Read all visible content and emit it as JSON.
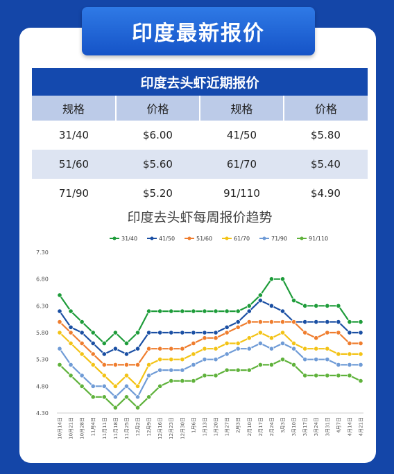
{
  "banner": {
    "title": "印度最新报价"
  },
  "price_table": {
    "title": "印度去头虾近期报价",
    "headers": [
      "规格",
      "价格",
      "规格",
      "价格"
    ],
    "rows": [
      [
        "31/40",
        "$6.00",
        "41/50",
        "$5.80"
      ],
      [
        "51/60",
        "$5.60",
        "61/70",
        "$5.40"
      ],
      [
        "71/90",
        "$5.20",
        "91/110",
        "$4.90"
      ]
    ]
  },
  "chart_data": {
    "type": "line",
    "title": "印度去头虾每周报价趋势",
    "legend_position": "top",
    "grid": false,
    "ylim": [
      4.3,
      7.3
    ],
    "yticks": [
      "7.30",
      "6.80",
      "6.30",
      "5.80",
      "5.30",
      "4.80",
      "4.30"
    ],
    "x": [
      "10月14日",
      "10月21日",
      "10月28日",
      "11月4日",
      "11月11日",
      "11月18日",
      "11月25日",
      "12月2日",
      "12月9日",
      "12月16日",
      "12月23日",
      "12月30日",
      "1月6日",
      "1月13日",
      "1月20日",
      "1月27日",
      "2月3日",
      "2月10日",
      "2月17日",
      "2月24日",
      "3月3日",
      "3月10日",
      "3月17日",
      "3月24日",
      "3月31日",
      "4月7日",
      "4月14日",
      "4月21日"
    ],
    "series": [
      {
        "name": "31/40",
        "color": "#1e9c3a",
        "values": [
          6.5,
          6.2,
          6.0,
          5.8,
          5.6,
          5.8,
          5.6,
          5.8,
          6.2,
          6.2,
          6.2,
          6.2,
          6.2,
          6.2,
          6.2,
          6.2,
          6.2,
          6.3,
          6.5,
          6.8,
          6.8,
          6.4,
          6.3,
          6.3,
          6.3,
          6.3,
          6.0,
          6.0
        ]
      },
      {
        "name": "41/50",
        "color": "#1a4fa3",
        "values": [
          6.2,
          5.9,
          5.8,
          5.6,
          5.4,
          5.5,
          5.4,
          5.5,
          5.8,
          5.8,
          5.8,
          5.8,
          5.8,
          5.8,
          5.8,
          5.9,
          6.0,
          6.2,
          6.4,
          6.3,
          6.2,
          6.0,
          6.0,
          6.0,
          6.0,
          6.0,
          5.8,
          5.8
        ]
      },
      {
        "name": "51/60",
        "color": "#ef7d2e",
        "values": [
          6.0,
          5.8,
          5.6,
          5.4,
          5.2,
          5.2,
          5.2,
          5.2,
          5.5,
          5.5,
          5.5,
          5.5,
          5.6,
          5.7,
          5.7,
          5.8,
          5.9,
          6.0,
          6.0,
          6.0,
          6.0,
          6.0,
          5.8,
          5.7,
          5.8,
          5.8,
          5.6,
          5.6
        ]
      },
      {
        "name": "61/70",
        "color": "#f3c316",
        "values": [
          5.8,
          5.6,
          5.4,
          5.2,
          5.0,
          4.8,
          5.0,
          4.8,
          5.2,
          5.3,
          5.3,
          5.3,
          5.4,
          5.5,
          5.5,
          5.6,
          5.6,
          5.7,
          5.8,
          5.7,
          5.8,
          5.6,
          5.5,
          5.5,
          5.5,
          5.4,
          5.4,
          5.4
        ]
      },
      {
        "name": "71/90",
        "color": "#6f9bd6",
        "values": [
          5.5,
          5.2,
          5.0,
          4.8,
          4.8,
          4.6,
          4.8,
          4.6,
          5.0,
          5.1,
          5.1,
          5.1,
          5.2,
          5.3,
          5.3,
          5.4,
          5.5,
          5.5,
          5.6,
          5.5,
          5.6,
          5.5,
          5.3,
          5.3,
          5.3,
          5.2,
          5.2,
          5.2
        ]
      },
      {
        "name": "91/110",
        "color": "#5fb23b",
        "values": [
          5.2,
          5.0,
          4.8,
          4.6,
          4.6,
          4.4,
          4.6,
          4.4,
          4.6,
          4.8,
          4.9,
          4.9,
          4.9,
          5.0,
          5.0,
          5.1,
          5.1,
          5.1,
          5.2,
          5.2,
          5.3,
          5.2,
          5.0,
          5.0,
          5.0,
          5.0,
          5.0,
          4.9
        ]
      }
    ]
  }
}
